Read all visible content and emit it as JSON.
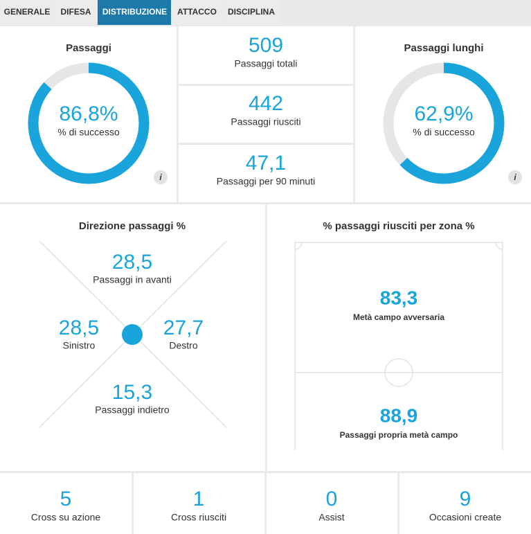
{
  "tabs": [
    "GENERALE",
    "DIFESA",
    "DISTRIBUZIONE",
    "ATTACCO",
    "DISCIPLINA"
  ],
  "passes": {
    "title": "Passaggi",
    "percent": {
      "value": 86.8,
      "label": "86,8%"
    },
    "caption": "% di successo"
  },
  "stats": [
    {
      "value": "509",
      "label": "Passaggi totali"
    },
    {
      "value": "442",
      "label": "Passaggi riusciti"
    },
    {
      "value": "47,1",
      "label": "Passaggi per 90 minuti"
    }
  ],
  "long_passes": {
    "title": "Passaggi lunghi",
    "percent": {
      "value": 62.9,
      "label": "62,9%"
    },
    "caption": "% di successo"
  },
  "direction": {
    "title": "Direzione passaggi %",
    "forward": {
      "value": "28,5",
      "label": "Passaggi in avanti"
    },
    "left": {
      "value": "28,5",
      "label": "Sinistro"
    },
    "right": {
      "value": "27,7",
      "label": "Destro"
    },
    "back": {
      "value": "15,3",
      "label": "Passaggi indietro"
    }
  },
  "zones": {
    "title": "% passaggi riusciti per zona %",
    "opponent_half": {
      "value": "83,3",
      "label": "Metà campo avversaria"
    },
    "own_half": {
      "value": "88,9",
      "label": "Passaggi propria metà campo"
    }
  },
  "totals": [
    {
      "value": "5",
      "label": "Cross su azione"
    },
    {
      "value": "1",
      "label": "Cross riusciti"
    },
    {
      "value": "0",
      "label": "Assist"
    },
    {
      "value": "9",
      "label": "Occasioni create"
    }
  ]
}
